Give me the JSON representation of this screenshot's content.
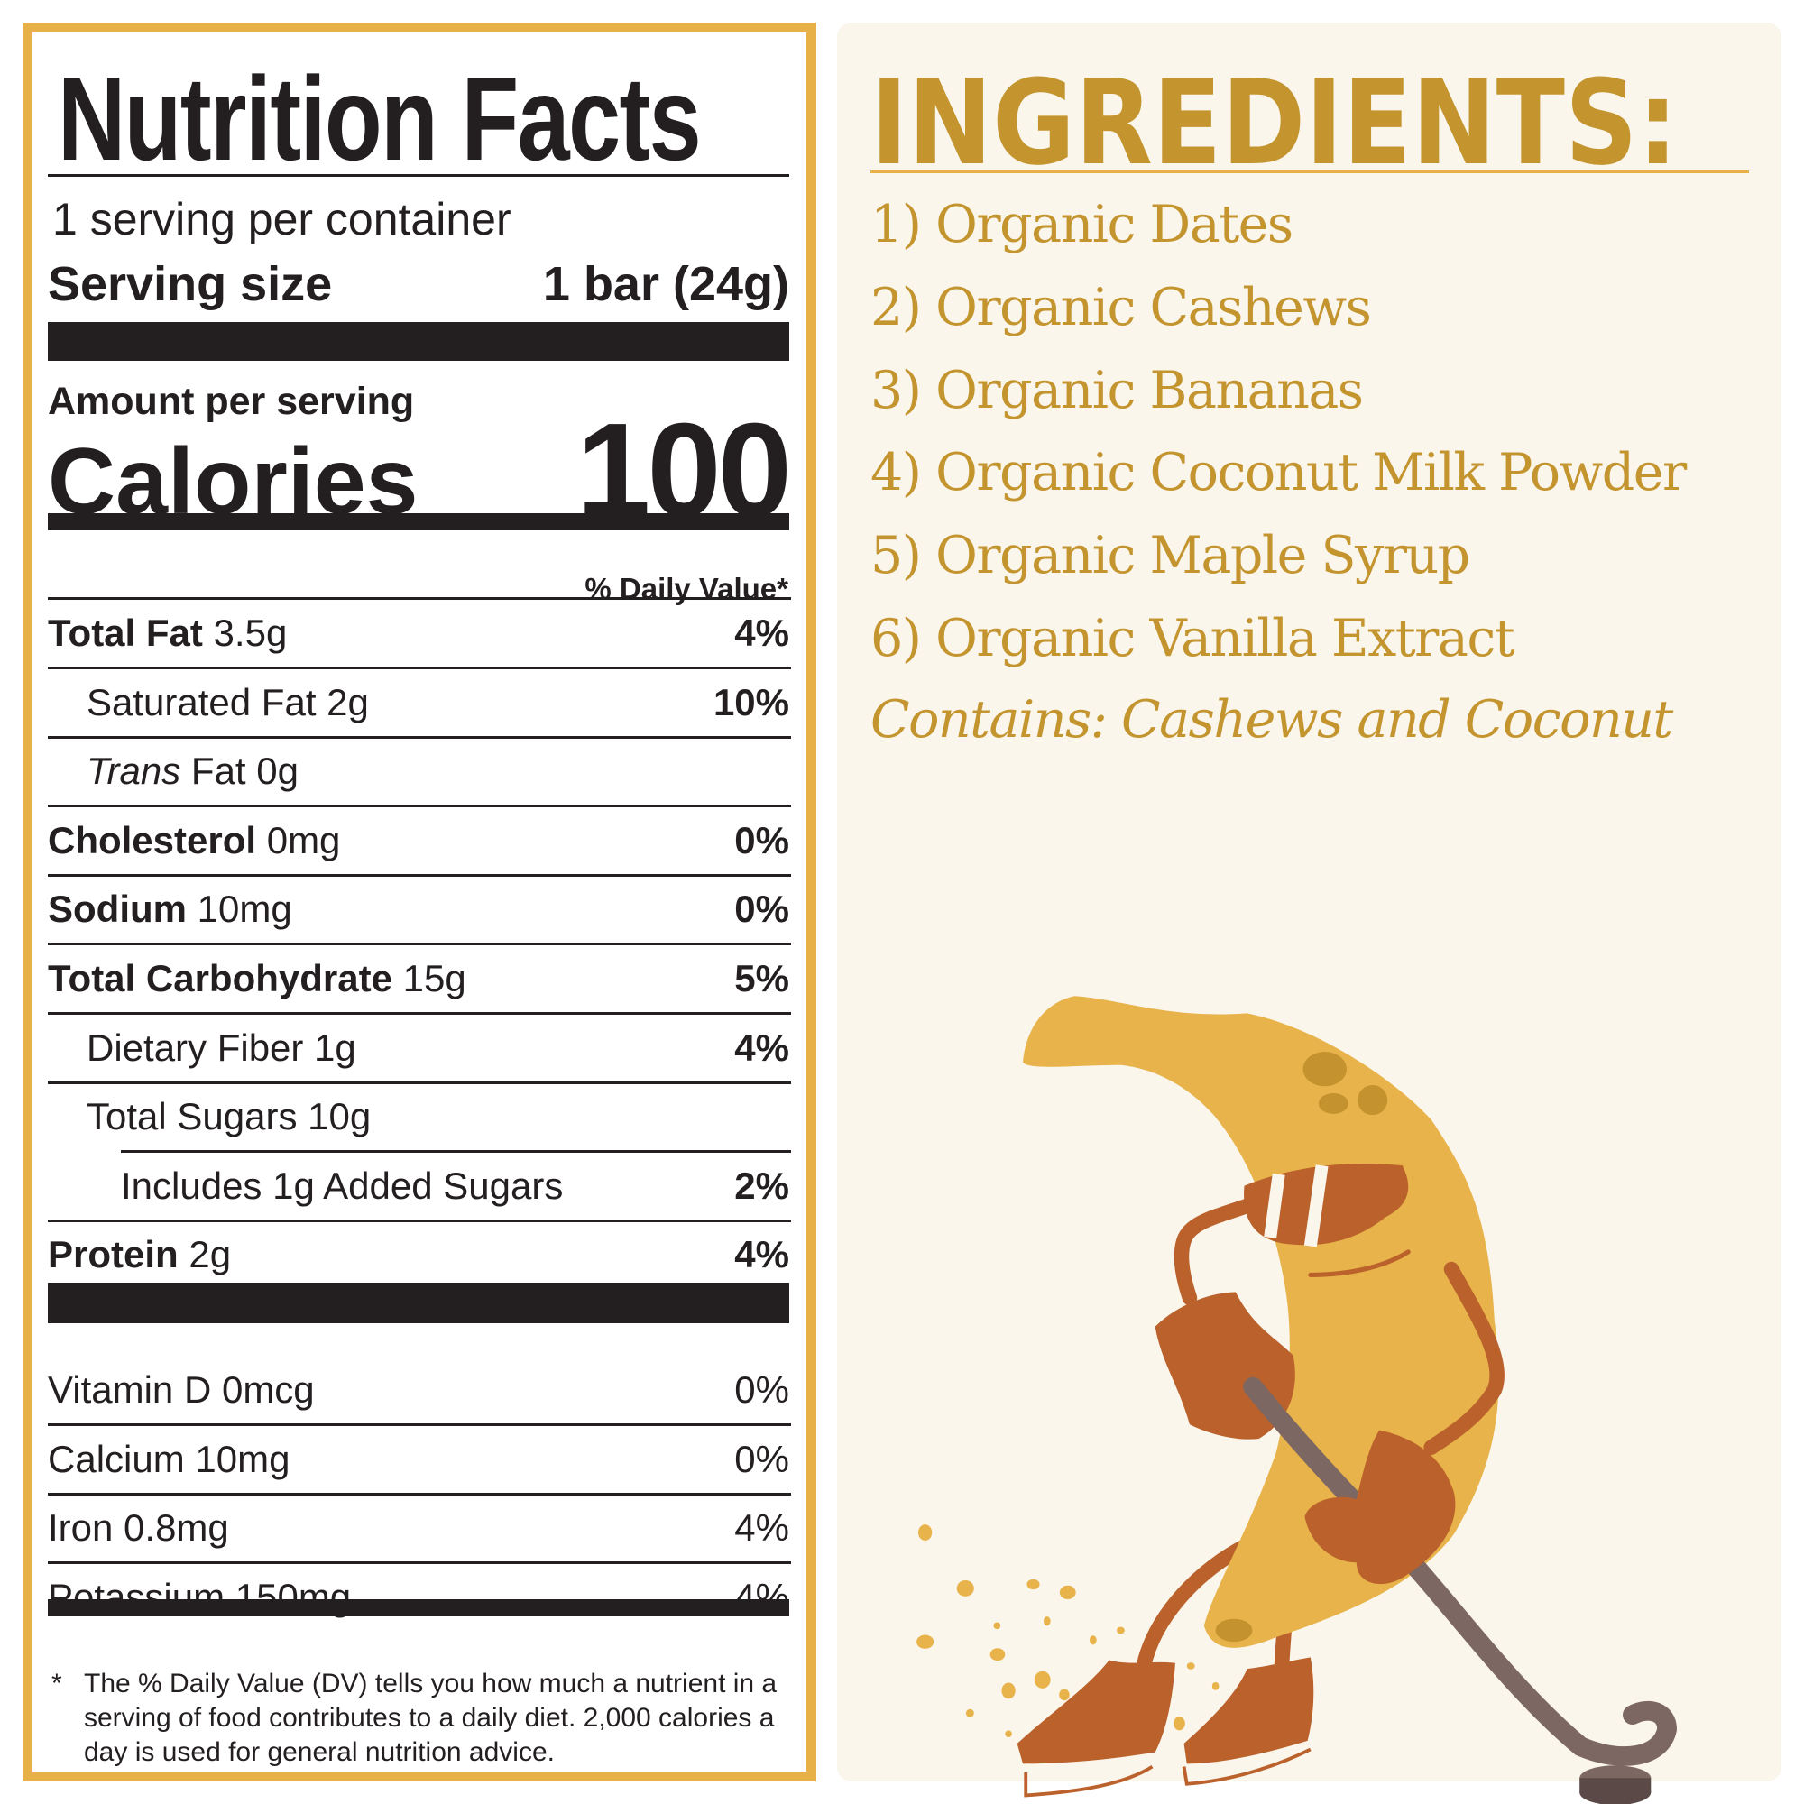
{
  "nutrition": {
    "title": "Nutrition Facts",
    "servings_per_container": "1 serving per container",
    "serving_size_label": "Serving size",
    "serving_size_value": "1 bar (24g)",
    "amount_per_serving": "Amount per serving",
    "calories_label": "Calories",
    "calories_value": "100",
    "daily_value_header": "% Daily Value*",
    "nutrients": [
      {
        "bold": "Total Fat",
        "rest": " 3.5g",
        "pct": "4%"
      },
      {
        "bold": "",
        "rest": "Saturated Fat 2g",
        "pct": "10%"
      },
      {
        "italic": "Trans",
        "rest": " Fat 0g",
        "pct": ""
      },
      {
        "bold": "Cholesterol",
        "rest": " 0mg",
        "pct": "0%"
      },
      {
        "bold": "Sodium",
        "rest": " 10mg",
        "pct": "0%"
      },
      {
        "bold": "Total Carbohydrate",
        "rest": " 15g",
        "pct": "5%"
      },
      {
        "bold": "",
        "rest": "Dietary Fiber 1g",
        "pct": "4%"
      },
      {
        "bold": "",
        "rest": "Total Sugars 10g",
        "pct": ""
      },
      {
        "bold": "",
        "rest": "Includes 1g Added Sugars",
        "pct": "2%"
      },
      {
        "bold": "Protein",
        "rest": " 2g",
        "pct": "4%"
      }
    ],
    "vitamins": [
      {
        "label": "Vitamin D 0mcg",
        "pct": "0%"
      },
      {
        "label": "Calcium 10mg",
        "pct": "0%"
      },
      {
        "label": "Iron 0.8mg",
        "pct": "4%"
      },
      {
        "label": "Potassium 150mg",
        "pct": "4%"
      }
    ],
    "footnote_star": "*",
    "footnote": "The % Daily Value (DV) tells you how much a nutrient in a serving of food contributes to a daily diet. 2,000 calories a day is used for general nutrition advice."
  },
  "ingredients": {
    "title": "INGREDIENTS:",
    "items": [
      "1) Organic Dates",
      "2) Organic Cashews",
      "3) Organic Bananas",
      "4) Organic Coconut Milk Powder",
      "5) Organic Maple Syrup",
      "6) Organic Vanilla Extract"
    ],
    "contains": "Contains: Cashews and Coconut"
  },
  "illustration": {
    "icon": "banana-hockey-player-icon"
  },
  "colors": {
    "border": "#e7b148",
    "ingredient_text": "#c4952f",
    "panel_bg": "#faf6ec",
    "ink": "#231f20",
    "banana": "#e8b34a",
    "brown": "#bb622c",
    "stick": "#7d6762"
  }
}
